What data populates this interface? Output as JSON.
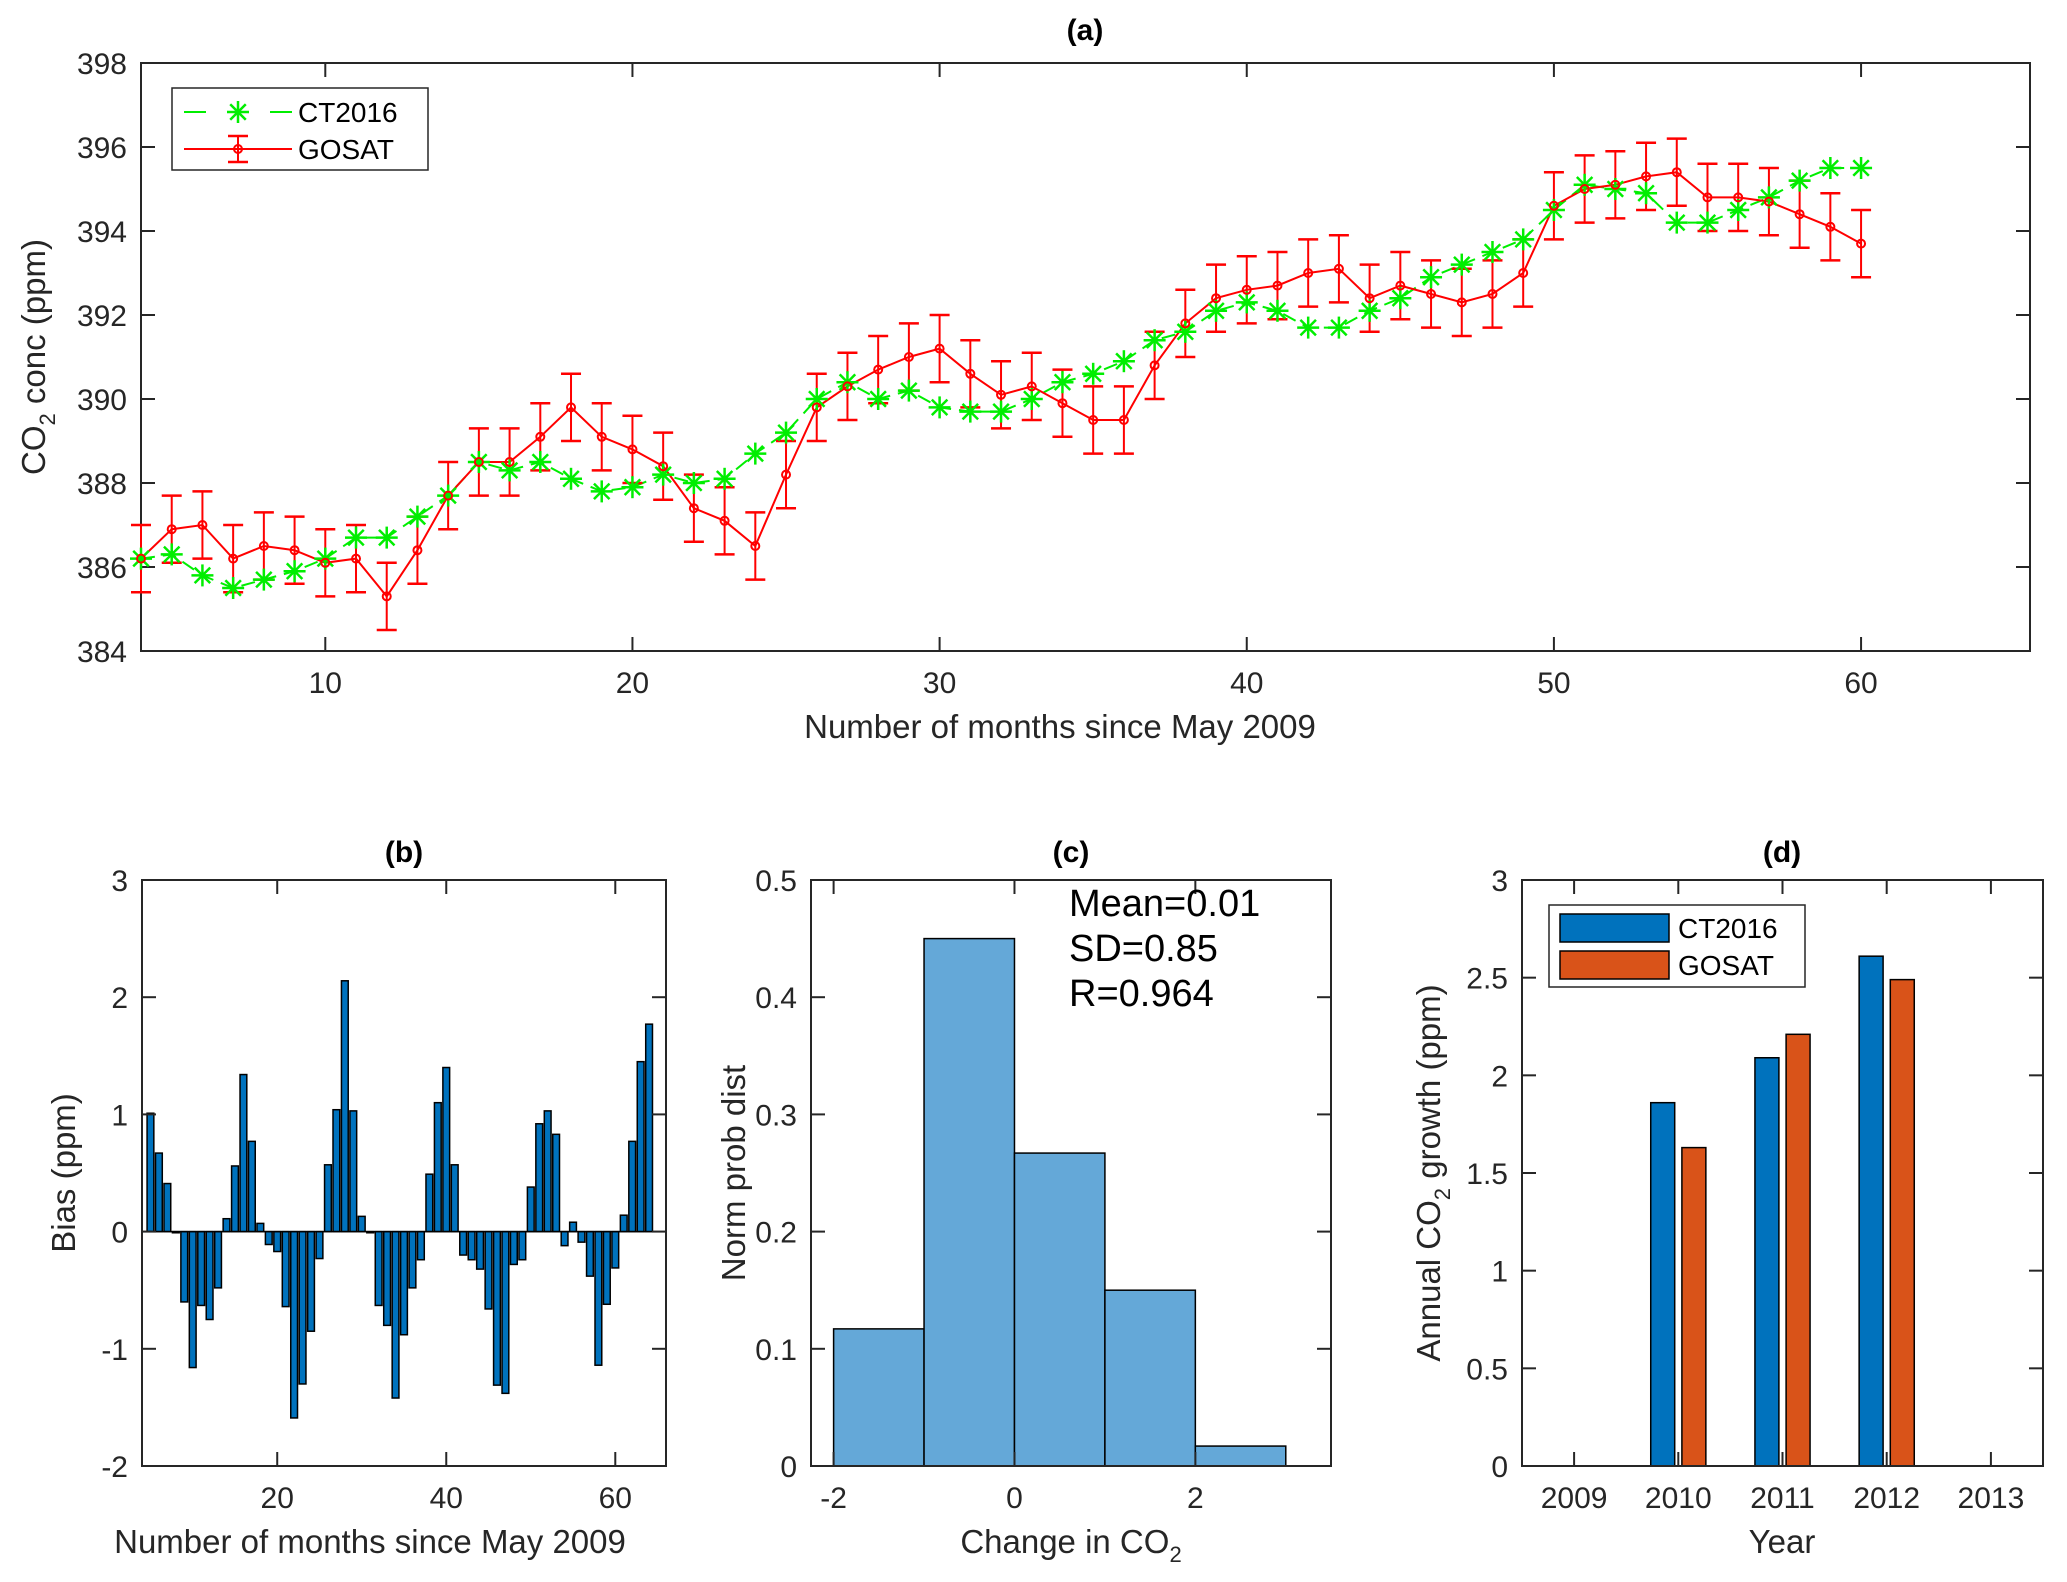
{
  "chart_data": [
    {
      "id": "a",
      "type": "line",
      "title": "(a)",
      "xlabel": "Number of months since May 2009",
      "ylabel_main": "CO",
      "ylabel_sub": "2",
      "ylabel_rest": " conc (ppm)",
      "xlim": [
        4,
        65.5
      ],
      "ylim": [
        384,
        398
      ],
      "xticks": [
        10,
        20,
        30,
        40,
        50,
        60
      ],
      "yticks": [
        384,
        386,
        388,
        390,
        392,
        394,
        396,
        398
      ],
      "grid": false,
      "legend_position": "top-left",
      "x": [
        4,
        5,
        6,
        7,
        8,
        9,
        10,
        11,
        12,
        13,
        14,
        15,
        16,
        17,
        18,
        19,
        20,
        21,
        22,
        23,
        24,
        25,
        26,
        27,
        28,
        29,
        30,
        31,
        32,
        33,
        34,
        35,
        36,
        37,
        38,
        39,
        40,
        41,
        42,
        43,
        44,
        45,
        46,
        47,
        48,
        49,
        50,
        51,
        52,
        53,
        54,
        55,
        56,
        57,
        58,
        59,
        60
      ],
      "series": [
        {
          "name": "CT2016",
          "color": "#00ee00",
          "style": "dashed-asterisk",
          "values": [
            386.2,
            386.3,
            385.8,
            385.5,
            385.7,
            385.9,
            386.2,
            386.7,
            386.7,
            387.2,
            387.7,
            388.5,
            388.3,
            388.5,
            388.1,
            387.8,
            387.9,
            388.2,
            388.0,
            388.1,
            388.7,
            389.2,
            390.0,
            390.4,
            390.0,
            390.2,
            389.8,
            389.7,
            389.7,
            390.0,
            390.4,
            390.6,
            390.9,
            391.4,
            391.6,
            392.1,
            392.3,
            392.1,
            391.7,
            391.7,
            392.1,
            392.4,
            392.9,
            393.2,
            393.5,
            393.8,
            394.5,
            395.1,
            395.0,
            394.9,
            394.2,
            394.2,
            394.5,
            394.8,
            395.2,
            395.5,
            395.5
          ]
        },
        {
          "name": "GOSAT",
          "color": "#ff0000",
          "style": "solid-circle-errorbar",
          "error": 0.8,
          "values": [
            386.2,
            386.9,
            387.0,
            386.2,
            386.5,
            386.4,
            386.1,
            386.2,
            385.3,
            386.4,
            387.7,
            388.5,
            388.5,
            389.1,
            389.8,
            389.1,
            388.8,
            388.4,
            387.4,
            387.1,
            386.5,
            388.2,
            389.8,
            390.3,
            390.7,
            391.0,
            391.2,
            390.6,
            390.1,
            390.3,
            389.9,
            389.5,
            389.5,
            390.8,
            391.8,
            392.4,
            392.6,
            392.7,
            393.0,
            393.1,
            392.4,
            392.7,
            392.5,
            392.3,
            392.5,
            393.0,
            394.6,
            395.0,
            395.1,
            395.3,
            395.4,
            394.8,
            394.8,
            394.7,
            394.4,
            394.1,
            393.7
          ]
        }
      ]
    },
    {
      "id": "b",
      "type": "bar",
      "title": "(b)",
      "xlabel": "Number of months since May 2009",
      "ylabel": "Bias (ppm)",
      "xlim": [
        4,
        66
      ],
      "ylim": [
        -2,
        3
      ],
      "xticks": [
        20,
        40,
        60
      ],
      "yticks": [
        -2,
        -1,
        0,
        1,
        2,
        3
      ],
      "color": "#0072bd",
      "x": [
        5,
        6,
        7,
        8,
        9,
        10,
        11,
        12,
        13,
        14,
        15,
        16,
        17,
        18,
        19,
        20,
        21,
        22,
        23,
        24,
        25,
        26,
        27,
        28,
        29,
        30,
        31,
        32,
        33,
        34,
        35,
        36,
        37,
        38,
        39,
        40,
        41,
        42,
        43,
        44,
        45,
        46,
        47,
        48,
        49,
        50,
        51,
        52,
        53,
        54,
        55,
        56,
        57,
        58,
        59,
        60,
        61,
        62,
        63,
        64
      ],
      "values": [
        1.01,
        0.67,
        0.41,
        -0.01,
        -0.6,
        -1.16,
        -0.63,
        -0.75,
        -0.48,
        0.11,
        0.56,
        1.34,
        0.77,
        0.07,
        -0.11,
        -0.17,
        -0.64,
        -1.59,
        -1.3,
        -0.85,
        -0.23,
        0.57,
        1.04,
        2.14,
        1.03,
        0.13,
        -0.01,
        -0.63,
        -0.8,
        -1.42,
        -0.88,
        -0.48,
        -0.24,
        0.49,
        1.1,
        1.4,
        0.57,
        -0.2,
        -0.24,
        -0.32,
        -0.66,
        -1.31,
        -1.38,
        -0.28,
        -0.24,
        0.38,
        0.92,
        1.03,
        0.83,
        -0.12,
        0.08,
        -0.09,
        -0.38,
        -1.14,
        -0.62,
        -0.31,
        0.14,
        0.77,
        1.45,
        1.77
      ]
    },
    {
      "id": "c",
      "type": "bar",
      "subtype": "histogram",
      "title": "(c)",
      "xlabel_main": "Change in CO",
      "xlabel_sub": "2",
      "ylabel": "Norm prob dist",
      "xlim": [
        -2.25,
        3.5
      ],
      "ylim": [
        0,
        0.5
      ],
      "xticks": [
        -2,
        0,
        2
      ],
      "yticks": [
        0,
        0.1,
        0.2,
        0.3,
        0.4,
        0.5
      ],
      "color": "#64a8d8",
      "bins": [
        [
          -2,
          -1
        ],
        [
          -1,
          0
        ],
        [
          0,
          1
        ],
        [
          1,
          2
        ],
        [
          2,
          3
        ]
      ],
      "values": [
        0.117,
        0.45,
        0.267,
        0.15,
        0.017
      ],
      "annotations": [
        "Mean=0.01",
        "SD=0.85",
        "R=0.964"
      ]
    },
    {
      "id": "d",
      "type": "bar",
      "subtype": "grouped",
      "title": "(d)",
      "xlabel": "Year",
      "ylabel_main": "Annual CO",
      "ylabel_sub": "2",
      "ylabel_rest": "  growth (ppm)",
      "categories": [
        "2009",
        "2010",
        "2011",
        "2012",
        "2013"
      ],
      "ylim": [
        0,
        3
      ],
      "yticks": [
        0,
        0.5,
        1,
        1.5,
        2,
        2.5,
        3
      ],
      "legend_position": "top-left",
      "series": [
        {
          "name": "CT2016",
          "color": "#0072bd",
          "values": [
            null,
            1.86,
            2.09,
            2.61,
            null
          ]
        },
        {
          "name": "GOSAT",
          "color": "#d95319",
          "values": [
            null,
            1.63,
            2.21,
            2.49,
            null
          ]
        }
      ]
    }
  ]
}
